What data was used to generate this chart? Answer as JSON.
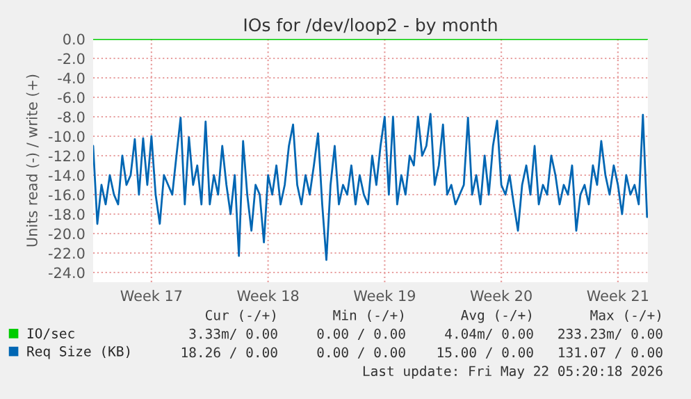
{
  "chart_data": {
    "type": "line",
    "title": "IOs for /dev/loop2 - by month",
    "ylabel": "Units read (-) / write (+)",
    "categories": [
      null,
      null,
      null,
      null,
      null,
      null,
      null,
      null,
      null,
      null,
      null,
      null,
      null,
      null,
      "Week 17",
      null,
      null,
      null,
      null,
      null,
      null,
      null,
      null,
      null,
      null,
      null,
      null,
      null,
      null,
      null,
      null,
      null,
      null,
      null,
      null,
      null,
      null,
      null,
      null,
      null,
      null,
      null,
      "Week 18",
      null,
      null,
      null,
      null,
      null,
      null,
      null,
      null,
      null,
      null,
      null,
      null,
      null,
      null,
      null,
      null,
      null,
      null,
      null,
      null,
      null,
      null,
      null,
      null,
      null,
      null,
      null,
      "Week 19",
      null,
      null,
      null,
      null,
      null,
      null,
      null,
      null,
      null,
      null,
      null,
      null,
      null,
      null,
      null,
      null,
      null,
      null,
      null,
      null,
      null,
      null,
      null,
      null,
      null,
      null,
      null,
      "Week 20",
      null,
      null,
      null,
      null,
      null,
      null,
      null,
      null,
      null,
      null,
      null,
      null,
      null,
      null,
      null,
      null,
      null,
      null,
      null,
      null,
      null,
      null,
      null,
      null,
      null,
      null,
      null,
      "Week 21",
      null,
      null,
      null,
      null,
      null,
      null,
      null
    ],
    "ylim": [
      -25,
      0
    ],
    "yticks": [
      {
        "value": 0,
        "label": "0.0"
      },
      {
        "value": -2,
        "label": "-2.0"
      },
      {
        "value": -4,
        "label": "-4.0"
      },
      {
        "value": -6,
        "label": "-6.0"
      },
      {
        "value": -8,
        "label": "-8.0"
      },
      {
        "value": -10,
        "label": "-10.0"
      },
      {
        "value": -12,
        "label": "-12.0"
      },
      {
        "value": -14,
        "label": "-14.0"
      },
      {
        "value": -16,
        "label": "-16.0"
      },
      {
        "value": -18,
        "label": "-18.0"
      },
      {
        "value": -20,
        "label": "-20.0"
      },
      {
        "value": -22,
        "label": "-22.0"
      },
      {
        "value": -24,
        "label": "-24.0"
      }
    ],
    "grid": true,
    "legend": "bottom left",
    "series": [
      {
        "name": "IO/sec",
        "color": "#00cc00",
        "values": [
          0,
          0,
          0,
          0,
          0,
          0,
          0,
          0,
          0,
          0,
          0,
          0,
          0,
          0,
          0,
          0,
          0,
          0,
          0,
          0,
          0,
          0,
          0,
          0,
          0,
          0,
          0,
          0,
          0,
          0,
          0,
          0,
          0,
          0,
          0,
          0,
          0,
          0,
          0,
          0,
          0,
          0,
          0,
          0,
          0,
          0,
          0,
          0,
          0,
          0,
          0,
          0,
          0,
          0,
          0,
          0,
          0,
          0,
          0,
          0,
          0,
          0,
          0,
          0,
          0,
          0,
          0,
          0,
          0,
          0,
          0,
          0,
          0,
          0,
          0,
          0,
          0,
          0,
          0,
          0,
          0,
          0,
          0,
          0,
          0,
          0,
          0,
          0,
          0,
          0,
          0,
          0,
          0,
          0,
          0,
          0,
          0,
          0,
          0,
          0,
          0,
          0,
          0,
          0,
          0,
          0,
          0,
          0,
          0,
          0,
          0,
          0,
          0,
          0,
          0,
          0,
          0,
          0,
          0,
          0,
          0,
          0,
          0,
          0,
          0,
          0,
          0,
          0,
          0,
          0,
          0,
          0,
          0,
          0
        ]
      },
      {
        "name": "Req Size (KB)",
        "color": "#0066b3",
        "values": [
          -11,
          -19,
          -15,
          -17,
          -14,
          -16,
          -17,
          -12,
          -15,
          -14,
          -10.3,
          -16,
          -10.2,
          -15,
          -10,
          -16,
          -19,
          -14,
          -15,
          -16,
          -12,
          -8.1,
          -17,
          -10.1,
          -15,
          -13,
          -17,
          -8.5,
          -17,
          -14,
          -16,
          -11,
          -15,
          -18,
          -14,
          -22.3,
          -10.5,
          -16,
          -19.7,
          -15,
          -16,
          -20.9,
          -14,
          -16,
          -13,
          -17,
          -15,
          -11,
          -8.8,
          -15,
          -17,
          -14,
          -16,
          -13,
          -9.7,
          -17,
          -22.7,
          -15,
          -11,
          -17,
          -15,
          -16,
          -13,
          -17,
          -14,
          -16,
          -17,
          -12,
          -15,
          -11,
          -8,
          -16,
          -8,
          -17,
          -14,
          -16,
          -12,
          -13,
          -8,
          -12,
          -11,
          -7.7,
          -15,
          -13,
          -8.8,
          -16,
          -15,
          -17,
          -16,
          -15,
          -8.1,
          -16,
          -14,
          -17,
          -12,
          -16,
          -11,
          -8.4,
          -15,
          -16,
          -14,
          -17,
          -19.7,
          -15,
          -13,
          -16,
          -11,
          -17,
          -15,
          -16,
          -12,
          -14,
          -17,
          -15,
          -16,
          -13,
          -19.7,
          -16,
          -15,
          -17,
          -13,
          -15,
          -10.5,
          -14,
          -16,
          -13,
          -15,
          -18,
          -14,
          -16,
          -15,
          -17,
          -7.8,
          -18.3
        ]
      }
    ],
    "annotations": [
      "Cur (-/+)",
      "Min (-/+)",
      "Avg (-/+)",
      "Max (-/+)",
      "3.33m/ 0.00",
      "0.00 / 0.00",
      "4.04m/ 0.00",
      "233.23m/ 0.00",
      "18.26 / 0.00",
      "0.00 / 0.00",
      "15.00 / 0.00",
      "131.07 / 0.00",
      "Last update: Fri May 22 05:20:18 2026"
    ]
  }
}
